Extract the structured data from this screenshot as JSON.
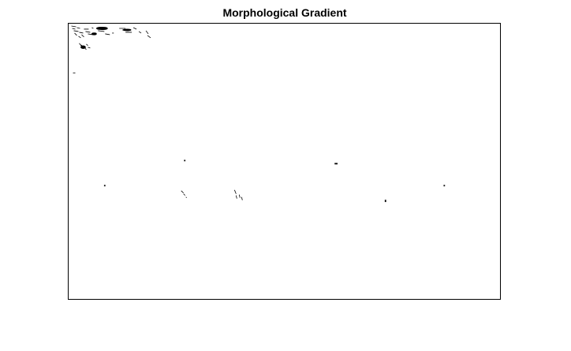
{
  "figure": {
    "title": "Morphological Gradient",
    "background_color": "#ffffff",
    "edge_color": "#000000"
  }
}
